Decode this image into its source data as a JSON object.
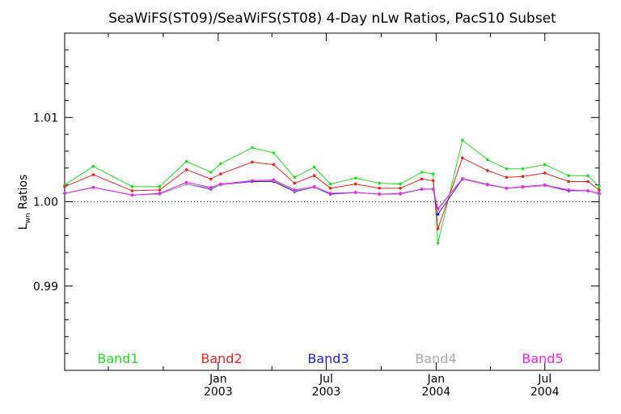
{
  "chart_data": {
    "type": "line",
    "title": "SeaWiFS(ST09)/SeaWiFS(ST08) 4-Day nLw Ratios, PacS10 Subset",
    "ylabel": {
      "main": "L",
      "sub": "wn",
      "rest": " Ratios"
    },
    "ylim": [
      0.98,
      1.02
    ],
    "yticks": [
      {
        "value": 0.99,
        "label": "0.99"
      },
      {
        "value": 1.0,
        "label": "1.00"
      },
      {
        "value": 1.01,
        "label": "1.01"
      }
    ],
    "reference_line": {
      "value": 1.0,
      "style": "dotted"
    },
    "xlim": [
      "2002-04-19",
      "2004-09-30"
    ],
    "xticks": [
      {
        "date": "2003-01-01",
        "label": "Jan",
        "year": "2003"
      },
      {
        "date": "2003-07-01",
        "label": "Jul",
        "year": "2003"
      },
      {
        "date": "2004-01-01",
        "label": "Jan",
        "year": "2004"
      },
      {
        "date": "2004-07-01",
        "label": "Jul",
        "year": "2004"
      }
    ],
    "x": [
      "2002-04-19",
      "2002-06-06",
      "2002-08-10",
      "2002-09-25",
      "2002-11-09",
      "2002-12-20",
      "2003-01-05",
      "2003-02-27",
      "2003-04-04",
      "2003-05-09",
      "2003-06-11",
      "2003-07-08",
      "2003-08-19",
      "2003-09-28",
      "2003-11-02",
      "2003-12-08",
      "2003-12-27",
      "2004-01-04",
      "2004-02-14",
      "2004-03-27",
      "2004-04-28",
      "2004-05-25",
      "2004-07-01",
      "2004-08-10",
      "2004-09-11",
      "2004-09-30"
    ],
    "series": [
      {
        "name": "Band1",
        "color": "#22dd22",
        "values": [
          1.002,
          1.0042,
          1.0018,
          1.0018,
          1.0048,
          1.0035,
          1.0045,
          1.0064,
          1.0058,
          1.0029,
          1.0041,
          1.0021,
          1.0028,
          1.0022,
          1.0021,
          1.0035,
          1.0033,
          0.9951,
          1.0073,
          1.005,
          1.0039,
          1.0039,
          1.0044,
          1.0031,
          1.0031,
          1.0018
        ]
      },
      {
        "name": "Band2",
        "color": "#ee2222",
        "values": [
          1.0018,
          1.0032,
          1.0013,
          1.0014,
          1.0038,
          1.0027,
          1.0033,
          1.0047,
          1.0044,
          1.0022,
          1.0031,
          1.0016,
          1.0021,
          1.0016,
          1.0016,
          1.0027,
          1.0025,
          0.9968,
          1.0052,
          1.0037,
          1.0029,
          1.003,
          1.0034,
          1.0024,
          1.0024,
          1.0014
        ]
      },
      {
        "name": "Band3",
        "color": "#2222dd",
        "values": [
          1.001,
          1.0017,
          1.0008,
          1.0009,
          1.0021,
          1.0015,
          1.002,
          1.0024,
          1.0024,
          1.0012,
          1.0017,
          1.0009,
          1.0011,
          1.0009,
          1.0009,
          1.0015,
          1.0015,
          0.9985,
          1.0027,
          1.0021,
          1.0016,
          1.0017,
          1.0019,
          1.0013,
          1.0013,
          1.0009
        ]
      },
      {
        "name": "Band4",
        "color": "#aaaaaa",
        "values": [
          1.001,
          1.0017,
          1.0008,
          1.0009,
          1.0021,
          1.0016,
          1.002,
          1.0025,
          1.0025,
          1.0013,
          1.0017,
          1.001,
          1.0011,
          1.0009,
          1.0009,
          1.0015,
          1.0015,
          0.999,
          1.0028,
          1.0021,
          1.0016,
          1.0017,
          1.0019,
          1.0014,
          1.0013,
          1.0009
        ]
      },
      {
        "name": "Band5",
        "color": "#ee22ee",
        "values": [
          1.001,
          1.0017,
          1.0008,
          1.001,
          1.0023,
          1.0017,
          1.0021,
          1.0025,
          1.0026,
          1.0014,
          1.0018,
          1.001,
          1.0011,
          1.0009,
          1.001,
          1.0015,
          1.0015,
          0.9992,
          1.0027,
          1.002,
          1.0016,
          1.0018,
          1.002,
          1.0014,
          1.0013,
          1.001
        ]
      }
    ],
    "legend_placement": "bottom"
  }
}
